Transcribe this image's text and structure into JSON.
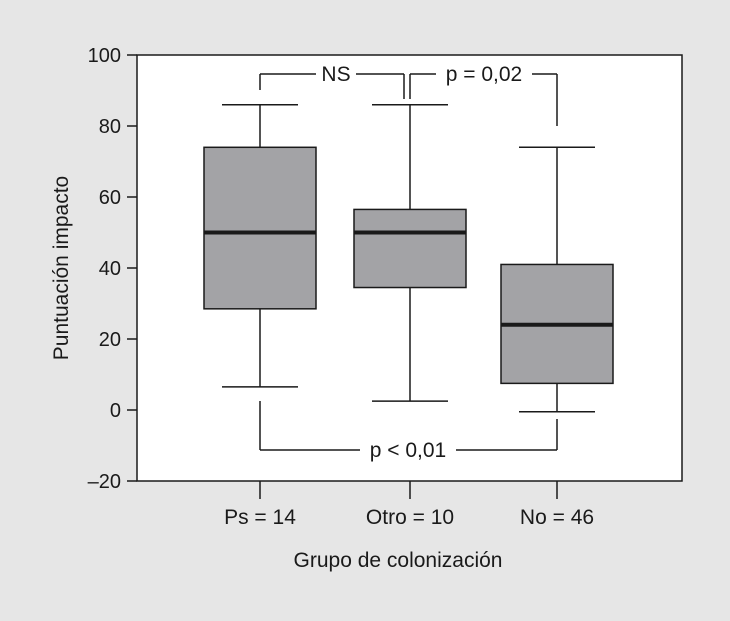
{
  "chart_data": {
    "type": "box",
    "title": "",
    "xlabel": "Grupo de colonización",
    "ylabel": "Puntuación impacto",
    "ylim": [
      -20,
      100
    ],
    "yticks": [
      100,
      80,
      60,
      40,
      20,
      0,
      -20
    ],
    "ytick_labels": [
      "100",
      "80",
      "60",
      "40",
      "20",
      "0",
      "–20"
    ],
    "grid": false,
    "categories": [
      "Ps = 14",
      "Otro = 10",
      "No = 46"
    ],
    "boxes": [
      {
        "category": "Ps = 14",
        "whisker_low": 6.5,
        "q1": 28.5,
        "median": 50,
        "q3": 74,
        "whisker_high": 86
      },
      {
        "category": "Otro = 10",
        "whisker_low": 2.5,
        "q1": 34.5,
        "median": 50,
        "q3": 56.5,
        "whisker_high": 86
      },
      {
        "category": "No = 46",
        "whisker_low": -0.5,
        "q1": 7.5,
        "median": 24,
        "q3": 41,
        "whisker_high": 74
      }
    ],
    "annotations": [
      {
        "text": "NS",
        "from": "Ps = 14",
        "to": "Otro = 10"
      },
      {
        "text": "p = 0,02",
        "from": "Otro = 10",
        "to": "No = 46"
      },
      {
        "text": "p < 0,01",
        "from": "Ps = 14",
        "to": "No = 46"
      }
    ],
    "colors": {
      "box_fill": "#a3a3a6",
      "line": "#1a1a1a",
      "plot_bg": "#ffffff",
      "page_bg": "#e6e6e6"
    }
  }
}
